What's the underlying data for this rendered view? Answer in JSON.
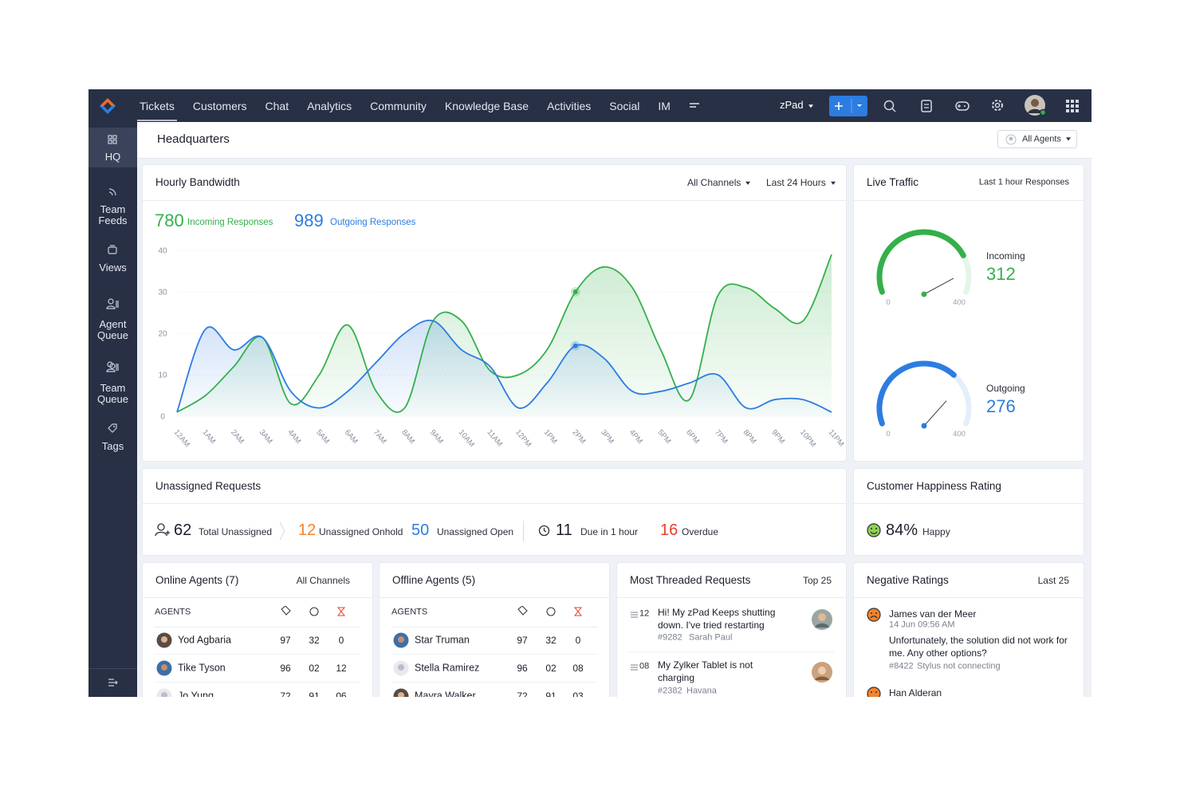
{
  "nav": {
    "items": [
      "Tickets",
      "Customers",
      "Chat",
      "Analytics",
      "Community",
      "Knowledge Base",
      "Activities",
      "Social",
      "IM"
    ],
    "workspace": "zPad"
  },
  "sidebar": {
    "items": [
      "HQ",
      "Team Feeds",
      "Views",
      "Agent Queue",
      "Team Queue",
      "Tags"
    ]
  },
  "header": {
    "title": "Headquarters",
    "agent_filter": "All Agents"
  },
  "chart_data": {
    "type": "line",
    "title": "Hourly Bandwidth",
    "filters": [
      "All Channels",
      "Last 24 Hours"
    ],
    "totals": [
      780,
      989
    ],
    "categories": [
      "12AM",
      "1AM",
      "2AM",
      "3AM",
      "4AM",
      "5AM",
      "6AM",
      "7AM",
      "8AM",
      "9AM",
      "10AM",
      "11AM",
      "12PM",
      "1PM",
      "2PM",
      "3PM",
      "4PM",
      "5PM",
      "6PM",
      "7PM",
      "8PM",
      "9PM",
      "10PM",
      "11PM"
    ],
    "series": [
      {
        "name": "Incoming Responses",
        "color": "#34b04a",
        "values": [
          1,
          5,
          12,
          19,
          3,
          10,
          22,
          6,
          2,
          23,
          23,
          11,
          10,
          16,
          30,
          36,
          31,
          16,
          4,
          29,
          31,
          26,
          23,
          39
        ]
      },
      {
        "name": "Outgoing Responses",
        "color": "#2d7ce0",
        "values": [
          1,
          21,
          16,
          19,
          6,
          2,
          6,
          13,
          20,
          23,
          16,
          12,
          2,
          8,
          17,
          14,
          6,
          6,
          8,
          10,
          2,
          4,
          4,
          1
        ]
      }
    ],
    "ylim": [
      0,
      40
    ],
    "yticks": [
      0,
      10,
      20,
      30,
      40
    ],
    "grid": true
  },
  "live_traffic": {
    "title": "Live Traffic",
    "period": "Last 1 hour Responses",
    "gauges": [
      {
        "label": "Incoming",
        "value": 312,
        "min": 0,
        "max": 400,
        "color": "#34b04a"
      },
      {
        "label": "Outgoing",
        "value": 276,
        "min": 0,
        "max": 400,
        "color": "#2d7ce0"
      }
    ]
  },
  "unassigned": {
    "title": "Unassigned Requests",
    "stats": [
      {
        "value": 62,
        "label": "Total Unassigned"
      },
      {
        "value": 12,
        "label": "Unassigned Onhold"
      },
      {
        "value": 50,
        "label": "Unassigned Open"
      },
      {
        "value": 11,
        "label": "Due in 1 hour"
      },
      {
        "value": 16,
        "label": "Overdue"
      }
    ]
  },
  "happiness": {
    "title": "Customer Happiness Rating",
    "value": "84%",
    "label": "Happy"
  },
  "online_agents": {
    "title": "Online Agents (7)",
    "filter": "All Channels",
    "header": "AGENTS",
    "rows": [
      [
        "Yod Agbaria",
        "97",
        "32",
        "0"
      ],
      [
        "Tike Tyson",
        "96",
        "02",
        "12"
      ],
      [
        "Jo Yung",
        "72",
        "91",
        "06"
      ]
    ]
  },
  "offline_agents": {
    "title": "Offline Agents (5)",
    "header": "AGENTS",
    "rows": [
      [
        "Star Truman",
        "97",
        "32",
        "0"
      ],
      [
        "Stella Ramirez",
        "96",
        "02",
        "08"
      ],
      [
        "Mayra Walker",
        "72",
        "91",
        "03"
      ]
    ]
  },
  "threaded_requests": {
    "title": "Most Threaded Requests",
    "filter": "Top 25",
    "items": [
      {
        "count": "12",
        "text": "Hi! My zPad Keeps shutting down. I've tried restarting",
        "ticket": "#9282",
        "contact": "Sarah Paul"
      },
      {
        "count": "08",
        "text": "My Zylker Tablet is not charging",
        "ticket": "#2382",
        "contact": "Havana"
      }
    ]
  },
  "negative_ratings": {
    "title": "Negative Ratings",
    "filter": "Last 25",
    "items": [
      {
        "name": "James van der Meer",
        "time": "14 Jun 09:56 AM",
        "comment": "Unfortunately, the solution did not work for me. Any other options?",
        "ticket": "#8422",
        "subject": "Stylus not connecting"
      },
      {
        "name": "Han Alderan"
      }
    ]
  }
}
